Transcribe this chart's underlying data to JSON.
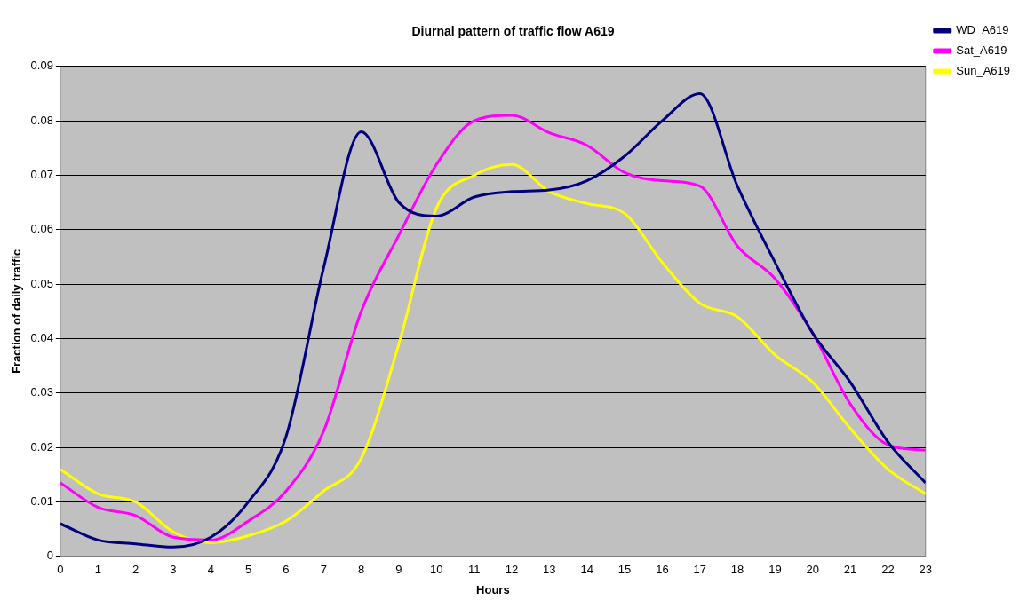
{
  "chart_data": {
    "type": "line",
    "title": "Diurnal pattern of traffic flow A619",
    "xlabel": "Hours",
    "ylabel": "Fraction of daily traffic",
    "x": [
      0,
      1,
      2,
      3,
      4,
      5,
      6,
      7,
      8,
      9,
      10,
      11,
      12,
      13,
      14,
      15,
      16,
      17,
      18,
      19,
      20,
      21,
      22,
      23
    ],
    "series": [
      {
        "name": "WD_A619",
        "color": "#000080",
        "values": [
          0.006,
          0.003,
          0.0023,
          0.0017,
          0.0035,
          0.01,
          0.022,
          0.053,
          0.078,
          0.065,
          0.0625,
          0.066,
          0.067,
          0.0673,
          0.069,
          0.0735,
          0.08,
          0.085,
          0.068,
          0.054,
          0.041,
          0.032,
          0.021,
          0.0135
        ]
      },
      {
        "name": "Sat_A619",
        "color": "#ff00ff",
        "values": [
          0.0135,
          0.009,
          0.0075,
          0.0035,
          0.003,
          0.0065,
          0.012,
          0.023,
          0.045,
          0.059,
          0.072,
          0.08,
          0.081,
          0.0778,
          0.0755,
          0.0705,
          0.069,
          0.068,
          0.057,
          0.051,
          0.041,
          0.028,
          0.0205,
          0.0195
        ]
      },
      {
        "name": "Sun_A619",
        "color": "#ffff00",
        "values": [
          0.016,
          0.0115,
          0.01,
          0.0045,
          0.0025,
          0.0038,
          0.0065,
          0.012,
          0.018,
          0.039,
          0.064,
          0.07,
          0.072,
          0.067,
          0.0648,
          0.063,
          0.054,
          0.0465,
          0.044,
          0.037,
          0.032,
          0.0235,
          0.016,
          0.0115
        ]
      }
    ],
    "xlim": [
      0,
      23
    ],
    "xticks": [
      0,
      1,
      2,
      3,
      4,
      5,
      6,
      7,
      8,
      9,
      10,
      11,
      12,
      13,
      14,
      15,
      16,
      17,
      18,
      19,
      20,
      21,
      22,
      23
    ],
    "ylim": [
      0,
      0.09
    ],
    "yticks": [
      0,
      0.01,
      0.02,
      0.03,
      0.04,
      0.05,
      0.06,
      0.07,
      0.08,
      0.09
    ],
    "grid": "y",
    "legend": "top right",
    "marker": "none",
    "line_style": "solid"
  }
}
